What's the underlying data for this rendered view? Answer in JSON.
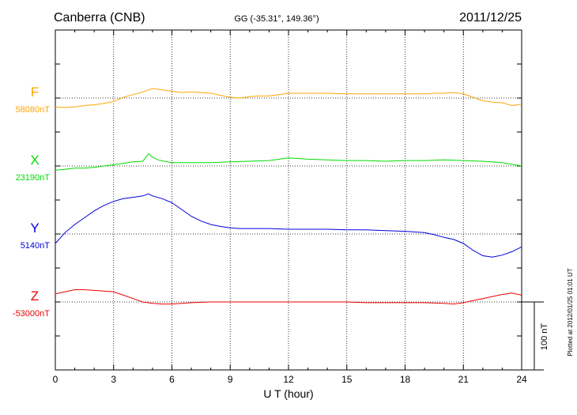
{
  "header": {
    "station": "Canberra (CNB)",
    "coords": "GG (-35.31°, 149.36°)",
    "date": "2011/12/25"
  },
  "side_note": "Plotted at 2012/01/25 01:01 UT",
  "scale_bar_label": "100 nT",
  "colors": {
    "F": "#ffa500",
    "X": "#00dd00",
    "Y": "#0000dd",
    "Z": "#ee0000"
  },
  "chart_data": {
    "type": "line",
    "title": "Canberra (CNB)",
    "xlabel": "U T (hour)",
    "ylabel": "",
    "xlim": [
      0,
      24
    ],
    "x_ticks": [
      "0",
      "3",
      "6",
      "9",
      "12",
      "15",
      "18",
      "21",
      "24"
    ],
    "scale_bar_nT": 100,
    "grid": true,
    "series": [
      {
        "name": "F",
        "baseline_label": "58080nT",
        "color": "#ffa500",
        "x": [
          0,
          0.5,
          1,
          1.5,
          2,
          2.5,
          3,
          3.5,
          4,
          4.5,
          5,
          5.5,
          6,
          6.5,
          7,
          7.5,
          8,
          8.5,
          9,
          9.5,
          10,
          10.5,
          11,
          11.5,
          12,
          12.5,
          13,
          14,
          15,
          16,
          17,
          18,
          19,
          19.5,
          20,
          20.5,
          21,
          21.5,
          22,
          22.5,
          23,
          23.5,
          24
        ],
        "y": [
          -13,
          -14,
          -13,
          -11,
          -10,
          -8,
          -5,
          1,
          5,
          9,
          14,
          12,
          10,
          8,
          9,
          8,
          7,
          4,
          1,
          0,
          2,
          3,
          3,
          5,
          7,
          7,
          7,
          7,
          6,
          6,
          6,
          6,
          6,
          7,
          7,
          8,
          6,
          1,
          -4,
          -6,
          -7,
          -11,
          -9
        ]
      },
      {
        "name": "X",
        "baseline_label": "23190nT",
        "color": "#00dd00",
        "x": [
          0,
          0.5,
          1,
          1.5,
          2,
          2.5,
          3,
          3.5,
          4,
          4.5,
          4.8,
          5,
          5.3,
          5.6,
          6,
          6.5,
          7,
          8,
          9,
          10,
          11,
          12,
          13,
          14,
          15,
          16,
          17,
          18,
          19,
          20,
          21,
          22,
          23,
          24
        ],
        "y": [
          -6,
          -5,
          -3,
          -3,
          -2,
          0,
          2,
          4,
          6,
          7,
          18,
          13,
          9,
          7,
          5,
          5,
          5,
          5,
          6,
          7,
          8,
          12,
          10,
          9,
          8,
          8,
          7,
          8,
          8,
          9,
          8,
          7,
          5,
          0
        ]
      },
      {
        "name": "Y",
        "baseline_label": "5140nT",
        "color": "#0000dd",
        "x": [
          0,
          0.5,
          1,
          1.5,
          2,
          2.5,
          3,
          3.5,
          4,
          4.5,
          4.8,
          5,
          5.5,
          6,
          6.5,
          7,
          7.5,
          8,
          8.5,
          9,
          9.5,
          10,
          11,
          12,
          13,
          14,
          15,
          16,
          17,
          18,
          19,
          19.5,
          20,
          20.5,
          21,
          21.5,
          22,
          22.5,
          23,
          23.5,
          24
        ],
        "y": [
          -14,
          2,
          14,
          24,
          34,
          42,
          48,
          52,
          54,
          56,
          59,
          56,
          52,
          46,
          36,
          26,
          19,
          14,
          11,
          9,
          8,
          8,
          8,
          7,
          7,
          7,
          6,
          6,
          5,
          4,
          2,
          -1,
          -5,
          -8,
          -14,
          -24,
          -32,
          -34,
          -31,
          -26,
          -19
        ]
      },
      {
        "name": "Z",
        "baseline_label": "-53000nT",
        "color": "#ee0000",
        "x": [
          0,
          0.5,
          1,
          1.5,
          2,
          2.5,
          3,
          3.5,
          4,
          4.5,
          5,
          5.5,
          6,
          6.5,
          7,
          8,
          9,
          10,
          11,
          12,
          13,
          14,
          15,
          16,
          17,
          18,
          19,
          20,
          20.5,
          21,
          21.5,
          22,
          22.5,
          23,
          23.5,
          24
        ],
        "y": [
          12,
          15,
          18,
          18,
          17,
          16,
          15,
          10,
          5,
          0,
          -2,
          -3,
          -3,
          -2,
          -1,
          0,
          0,
          0,
          0,
          0,
          0,
          0,
          0,
          -1,
          -1,
          -1,
          -1,
          -2,
          -3,
          -1,
          2,
          5,
          8,
          11,
          13,
          10
        ]
      }
    ]
  }
}
